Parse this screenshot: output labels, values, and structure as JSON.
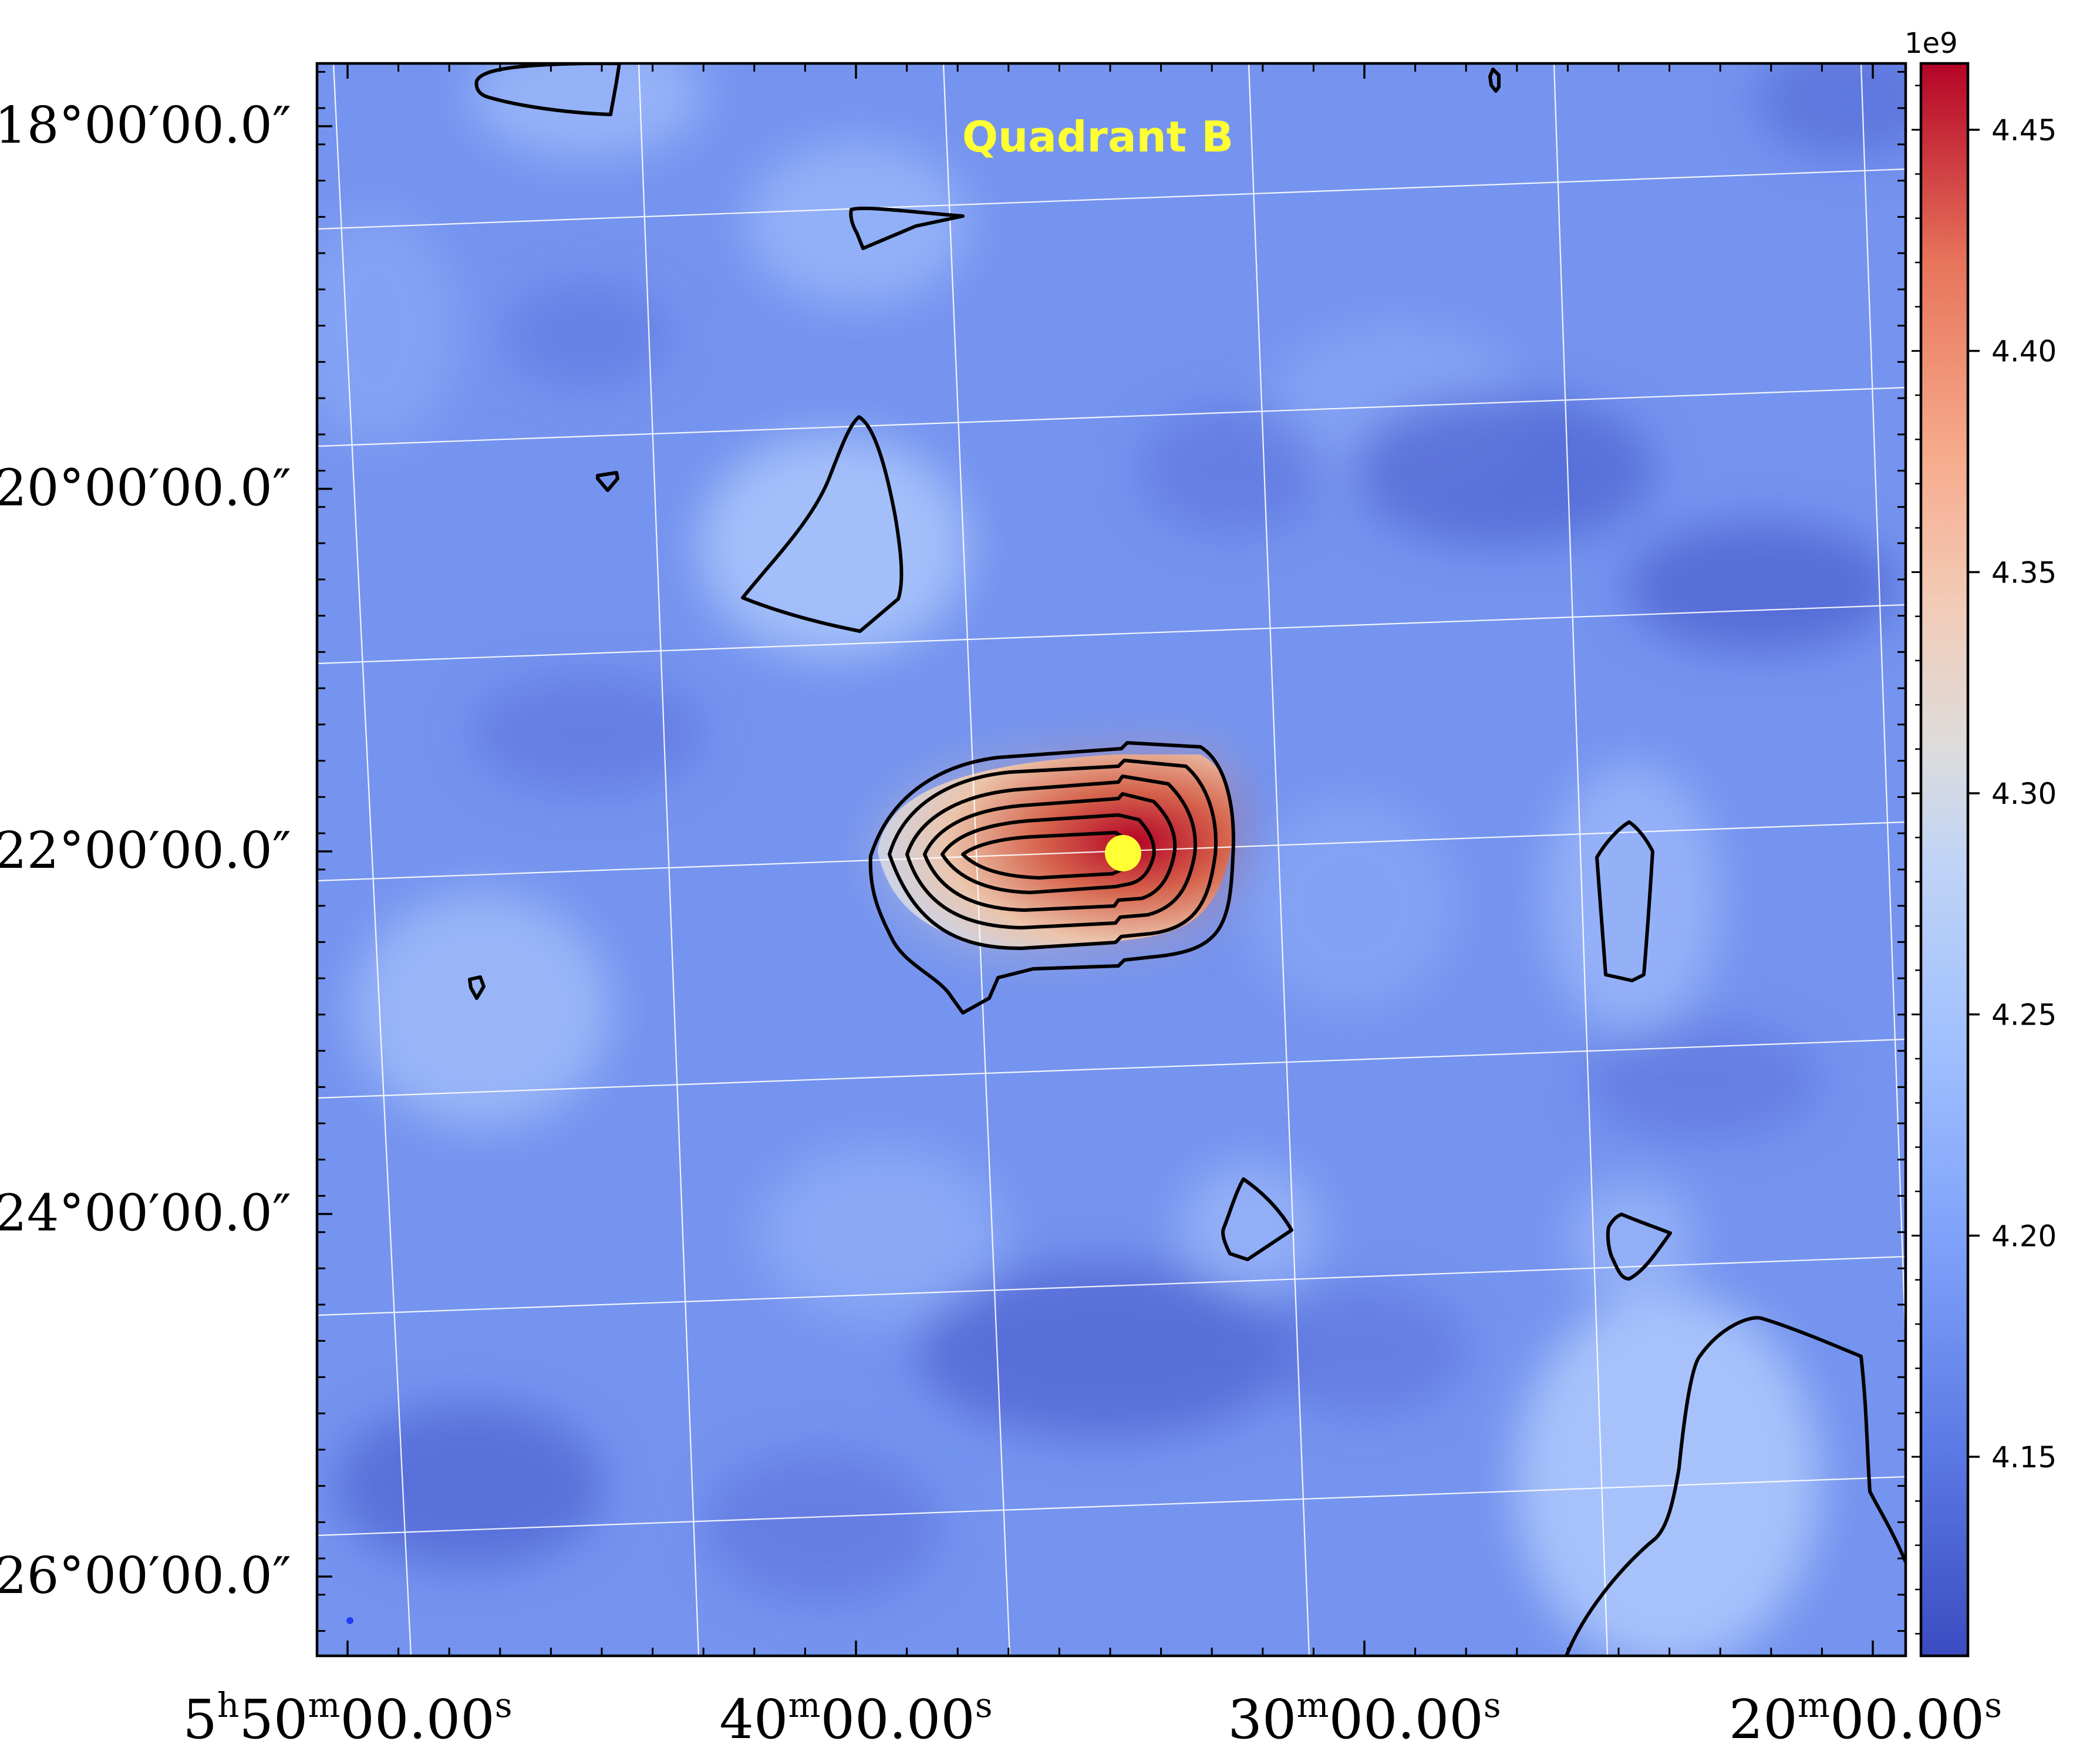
{
  "chart_data": {
    "type": "heatmap",
    "title": "",
    "annotation": "Quadrant B",
    "annotation_color": "#ffff33",
    "marker_color": "#ffff33",
    "colormap": "coolwarm",
    "contour_color": "#000000",
    "grid": true,
    "grid_color": "#ffffff",
    "colorbar_location": "right",
    "colorbar": {
      "offset_label": "1e9",
      "range": [
        4.105,
        4.465
      ],
      "ticks": [
        4.15,
        4.2,
        4.25,
        4.3,
        4.35,
        4.4,
        4.45
      ],
      "tick_labels": [
        "4.15",
        "4.20",
        "4.25",
        "4.30",
        "4.35",
        "4.40",
        "4.45"
      ]
    },
    "y_axis": {
      "tick_labels": [
        {
          "value": 18,
          "label": "18°00′00.0″"
        },
        {
          "value": 20,
          "label": "20°00′00.0″"
        },
        {
          "value": 22,
          "label": "22°00′00.0″"
        },
        {
          "value": 24,
          "label": "24°00′00.0″"
        },
        {
          "value": 26,
          "label": "26°00′00.0″"
        }
      ]
    },
    "x_axis": {
      "tick_labels": [
        {
          "value": 50,
          "label": "5h50m00.00s",
          "parts": [
            [
              "5",
              ""
            ],
            [
              "h",
              "sup"
            ],
            [
              "50",
              ""
            ],
            [
              "m",
              "sup"
            ],
            [
              "00.00",
              ""
            ],
            [
              "s",
              "sup"
            ]
          ]
        },
        {
          "value": 40,
          "label": "40m00.00s",
          "parts": [
            [
              "40",
              ""
            ],
            [
              "m",
              "sup"
            ],
            [
              "00.00",
              ""
            ],
            [
              "s",
              "sup"
            ]
          ]
        },
        {
          "value": 30,
          "label": "30m00.00s",
          "parts": [
            [
              "30",
              ""
            ],
            [
              "m",
              "sup"
            ],
            [
              "00.00",
              ""
            ],
            [
              "s",
              "sup"
            ]
          ]
        },
        {
          "value": 20,
          "label": "20m00.00s",
          "parts": [
            [
              "20",
              ""
            ],
            [
              "m",
              "sup"
            ],
            [
              "00.00",
              ""
            ],
            [
              "s",
              "sup"
            ]
          ]
        }
      ]
    },
    "peak": {
      "ra_min": 36,
      "dec_deg": 22,
      "value": 4.46
    },
    "background_level": 4.17
  }
}
